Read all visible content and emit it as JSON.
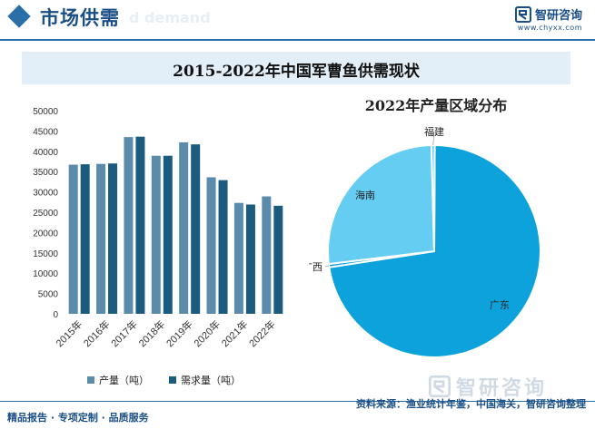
{
  "header": {
    "section_title": "市场供需",
    "section_subtitle": "d demand",
    "brand_name": "智研咨询",
    "brand_url": "www.chyxx.com",
    "accent_color": "#2a6fa8"
  },
  "chart_data": [
    {
      "type": "bar",
      "title": "2015-2022年中国军曹鱼供需现状",
      "categories": [
        "2015年",
        "2016年",
        "2017年",
        "2018年",
        "2019年",
        "2020年",
        "2021年",
        "2022年"
      ],
      "series": [
        {
          "name": "产量（吨）",
          "color": "#5b8bab",
          "values": [
            36700,
            36900,
            43500,
            38900,
            42200,
            33600,
            27300,
            28900
          ]
        },
        {
          "name": "需求量（吨）",
          "color": "#1a5b7e",
          "values": [
            36800,
            37000,
            43600,
            38900,
            41700,
            32900,
            26900,
            26600
          ]
        }
      ],
      "ylim": [
        0,
        50000
      ],
      "yticks": [
        "0",
        "5000",
        "10000",
        "15000",
        "20000",
        "25000",
        "30000",
        "35000",
        "40000",
        "45000",
        "50000"
      ],
      "grid": false,
      "legend_position": "bottom"
    },
    {
      "type": "pie",
      "title": "2022年产量区域分布",
      "slices": [
        {
          "label": "广东",
          "value": 72.5,
          "color": "#0ea2dc"
        },
        {
          "label": "广西",
          "value": 0.5,
          "color": "#0ea2dc"
        },
        {
          "label": "海南",
          "value": 26.5,
          "color": "#66cdf2"
        },
        {
          "label": "福建",
          "value": 0.5,
          "color": "#66cdf2"
        }
      ]
    }
  ],
  "footer": {
    "left_text": "精品报告 · 专项定制 · 品质服务",
    "source_text": "资料来源：渔业统计年鉴，中国海关，智研咨询整理",
    "watermark_text": "智研咨询"
  }
}
